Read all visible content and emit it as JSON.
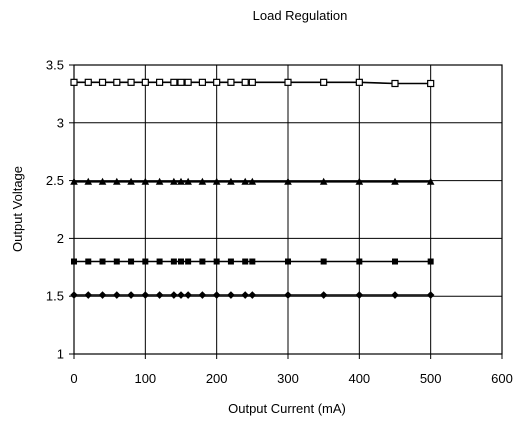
{
  "chart_data": {
    "type": "scatter",
    "title": "Load Regulation",
    "xlabel": "Output Current (mA)",
    "ylabel": "Output Voltage",
    "xlim": [
      0,
      600
    ],
    "ylim": [
      1,
      3.5
    ],
    "x_ticks": [
      0,
      100,
      200,
      300,
      400,
      500,
      600
    ],
    "y_ticks": [
      1,
      1.5,
      2,
      2.5,
      3,
      3.5
    ],
    "x_tick_labels": [
      "0",
      "100",
      "200",
      "300",
      "400",
      "500",
      "600"
    ],
    "y_tick_labels": [
      "1",
      "1.5",
      "2",
      "2.5",
      "3",
      "3.5"
    ],
    "grid": true,
    "legend": "none",
    "x": [
      0,
      20,
      40,
      60,
      80,
      100,
      120,
      140,
      150,
      160,
      180,
      200,
      220,
      240,
      250,
      300,
      350,
      400,
      450,
      500
    ],
    "series": [
      {
        "marker": "square-open",
        "color": "#000000",
        "values": [
          3.35,
          3.35,
          3.35,
          3.35,
          3.35,
          3.35,
          3.35,
          3.35,
          3.35,
          3.35,
          3.35,
          3.35,
          3.35,
          3.35,
          3.35,
          3.35,
          3.35,
          3.35,
          3.34,
          3.34
        ]
      },
      {
        "marker": "triangle",
        "color": "#000000",
        "values": [
          2.49,
          2.49,
          2.49,
          2.49,
          2.49,
          2.49,
          2.49,
          2.49,
          2.49,
          2.49,
          2.49,
          2.49,
          2.49,
          2.49,
          2.49,
          2.49,
          2.49,
          2.49,
          2.49,
          2.49
        ]
      },
      {
        "marker": "square-filled",
        "color": "#000000",
        "values": [
          1.8,
          1.8,
          1.8,
          1.8,
          1.8,
          1.8,
          1.8,
          1.8,
          1.8,
          1.8,
          1.8,
          1.8,
          1.8,
          1.8,
          1.8,
          1.8,
          1.8,
          1.8,
          1.8,
          1.8
        ]
      },
      {
        "marker": "diamond",
        "color": "#000000",
        "values": [
          1.51,
          1.51,
          1.51,
          1.51,
          1.51,
          1.51,
          1.51,
          1.51,
          1.51,
          1.51,
          1.51,
          1.51,
          1.51,
          1.51,
          1.51,
          1.51,
          1.51,
          1.51,
          1.51,
          1.51
        ]
      }
    ]
  }
}
